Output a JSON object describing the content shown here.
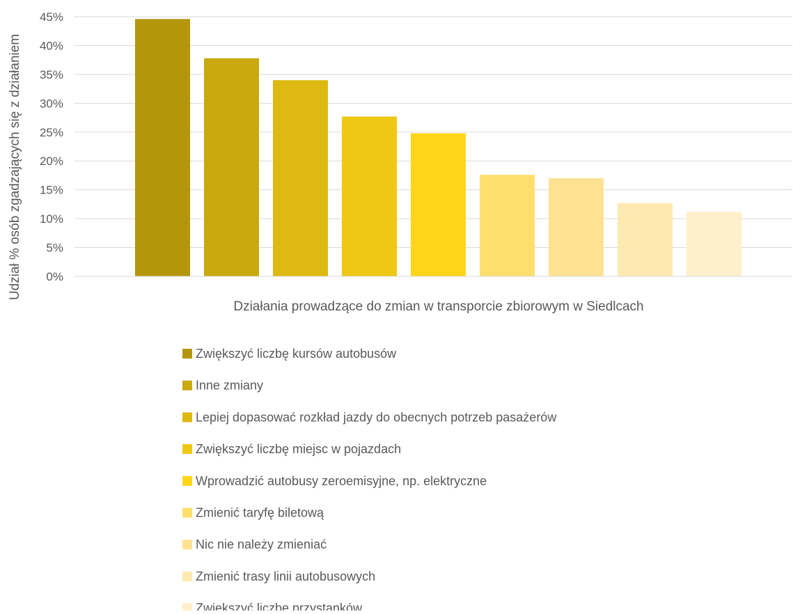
{
  "chart_data": {
    "type": "bar",
    "title": "",
    "xlabel": "Działania prowadzące do zmian w transporcie zbiorowym w Siedlcach",
    "ylabel": "Udział % osób zgadzających się z działaniem",
    "ylim": [
      0,
      45
    ],
    "yticks": [
      "0%",
      "5%",
      "10%",
      "15%",
      "20%",
      "25%",
      "30%",
      "35%",
      "40%",
      "45%"
    ],
    "grid": true,
    "legend_position": "bottom",
    "series": [
      {
        "name": "Zwiększyć liczbę kursów autobusów",
        "value": 44.6,
        "color": "#B3960C"
      },
      {
        "name": "Inne zmiany",
        "value": 37.8,
        "color": "#C9A90E"
      },
      {
        "name": "Lepiej dopasować rozkład jazdy do obecnych potrzeb pasażerów",
        "value": 34.0,
        "color": "#DDB912"
      },
      {
        "name": "Zwiększyć liczbę miejsc w pojazdach",
        "value": 27.7,
        "color": "#EEC815"
      },
      {
        "name": "Wprowadzić autobusy zeroemisyjne, np. elektryczne",
        "value": 24.8,
        "color": "#FFD51A"
      },
      {
        "name": "Zmienić taryfę biletową",
        "value": 17.6,
        "color": "#FEDF6D"
      },
      {
        "name": "Nic nie należy zmieniać",
        "value": 17.0,
        "color": "#FEE292"
      },
      {
        "name": "Zmienić trasy linii autobusowych",
        "value": 12.7,
        "color": "#FEEAB1"
      },
      {
        "name": "Zwiększyć liczbę przystanków",
        "value": 11.2,
        "color": "#FFEFCA"
      }
    ]
  }
}
